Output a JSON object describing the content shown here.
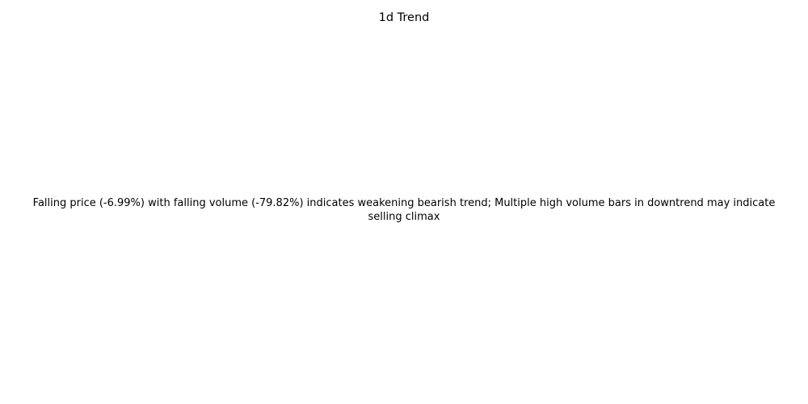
{
  "chart_data": {
    "type": "line",
    "title": "1d Trend",
    "xlabel": "",
    "ylabel": "",
    "grid": false,
    "axes_visible": false,
    "series": [],
    "annotation": {
      "line1": "Falling price (-6.99%) with falling volume (-79.82%) indicates weakening bearish trend; Multiple high volume bars in downtrend may indicate",
      "line2": "selling climax"
    }
  }
}
